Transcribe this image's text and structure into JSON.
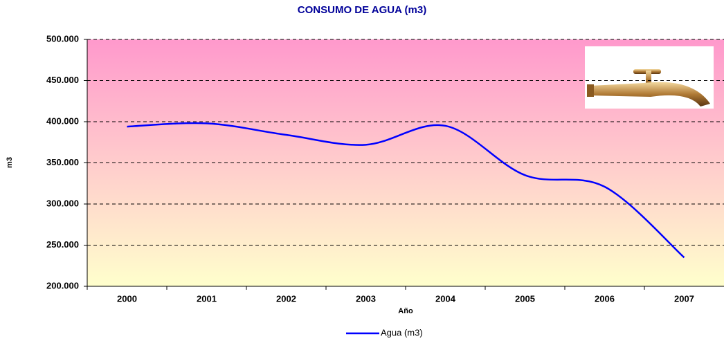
{
  "chart_data": {
    "type": "line",
    "title": "CONSUMO DE AGUA (m3)",
    "x_label": "Año",
    "y_label": "m3",
    "categories": [
      "2000",
      "2001",
      "2002",
      "2003",
      "2004",
      "2005",
      "2006",
      "2007"
    ],
    "series": [
      {
        "name": "Agua (m3)",
        "color": "#0000ff",
        "values": [
          394000,
          398000,
          384000,
          372000,
          395000,
          335000,
          321000,
          235000
        ]
      }
    ],
    "ylim": [
      200000,
      500000
    ],
    "yticks": [
      {
        "value": 200000,
        "label": "200.000"
      },
      {
        "value": 250000,
        "label": "250.000"
      },
      {
        "value": 300000,
        "label": "300.000"
      },
      {
        "value": 350000,
        "label": "350.000"
      },
      {
        "value": 400000,
        "label": "400.000"
      },
      {
        "value": 450000,
        "label": "450.000"
      },
      {
        "value": 500000,
        "label": "500.000"
      }
    ],
    "grid": true,
    "legend": "bottom"
  }
}
